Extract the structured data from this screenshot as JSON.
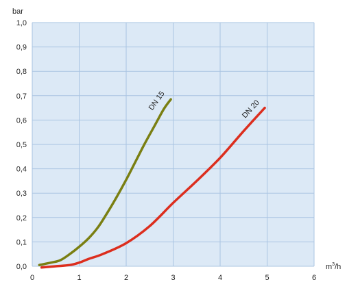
{
  "chart_data": {
    "type": "line",
    "title": "",
    "xlabel": "",
    "ylabel": "",
    "y_unit_label": "bar",
    "x_unit_label": {
      "base": "m",
      "sup": "3",
      "tail": "/h"
    },
    "xlim": [
      0,
      6
    ],
    "ylim": [
      0,
      1.0
    ],
    "x_ticks": [
      0,
      1,
      2,
      3,
      4,
      5,
      6
    ],
    "x_tick_labels": [
      "0",
      "1",
      "2",
      "3",
      "4",
      "5",
      "6"
    ],
    "y_ticks": [
      0,
      0.1,
      0.2,
      0.3,
      0.4,
      0.5,
      0.6,
      0.7,
      0.8,
      0.9,
      1.0
    ],
    "y_tick_labels": [
      "0,0",
      "0,1",
      "0,2",
      "0,3",
      "0,4",
      "0,5",
      "0,6",
      "0,7",
      "0,8",
      "0,9",
      "1,0"
    ],
    "grid": true,
    "plot_background": "#dce9f6",
    "grid_color": "#a9c4e2",
    "series": [
      {
        "name": "DN 15",
        "color": "#7a7f12",
        "x": [
          0.15,
          0.4,
          0.6,
          0.8,
          1.0,
          1.2,
          1.4,
          1.6,
          1.8,
          2.0,
          2.2,
          2.4,
          2.6,
          2.8,
          2.95
        ],
        "y": [
          0.005,
          0.015,
          0.025,
          0.05,
          0.08,
          0.115,
          0.16,
          0.22,
          0.285,
          0.355,
          0.43,
          0.505,
          0.575,
          0.645,
          0.685
        ]
      },
      {
        "name": "DN 20",
        "color": "#dc2e1e",
        "x": [
          0.2,
          0.5,
          0.8,
          1.0,
          1.2,
          1.5,
          2.0,
          2.5,
          3.0,
          3.5,
          4.0,
          4.5,
          4.95
        ],
        "y": [
          -0.005,
          0.0,
          0.005,
          0.015,
          0.03,
          0.05,
          0.095,
          0.165,
          0.26,
          0.35,
          0.445,
          0.555,
          0.65
        ]
      }
    ]
  }
}
